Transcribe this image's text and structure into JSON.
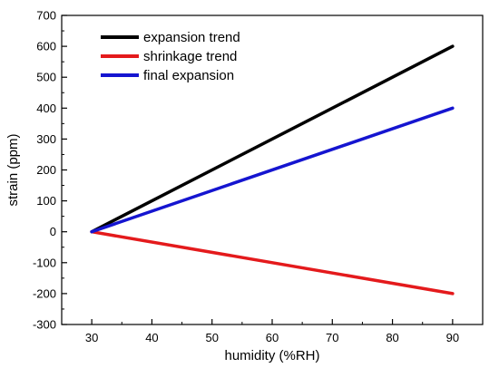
{
  "chart_data": {
    "type": "line",
    "title": "",
    "xlabel": "humidity (%RH)",
    "ylabel": "strain (ppm)",
    "xlim": [
      25,
      95
    ],
    "ylim": [
      -300,
      700
    ],
    "x_ticks": [
      30,
      40,
      50,
      60,
      70,
      80,
      90
    ],
    "y_ticks": [
      -300,
      -200,
      -100,
      0,
      100,
      200,
      300,
      400,
      500,
      600,
      700
    ],
    "grid": false,
    "legend_position": "top-left",
    "series": [
      {
        "name": "expansion trend",
        "color": "#000000",
        "x": [
          30,
          90
        ],
        "y": [
          0,
          600
        ]
      },
      {
        "name": "shrinkage trend",
        "color": "#e41a1c",
        "x": [
          30,
          90
        ],
        "y": [
          0,
          -200
        ]
      },
      {
        "name": "final expansion",
        "color": "#1515d0",
        "x": [
          30,
          90
        ],
        "y": [
          0,
          400
        ]
      }
    ]
  }
}
